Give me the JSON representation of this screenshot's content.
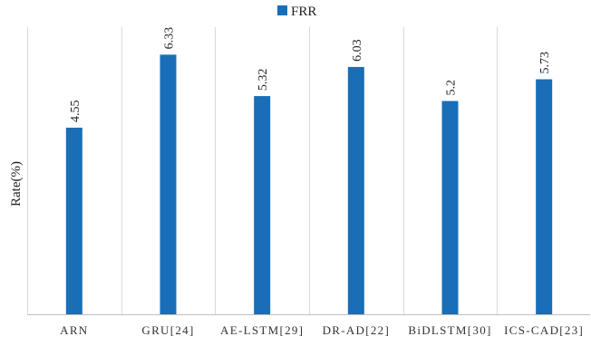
{
  "chart_data": {
    "type": "bar",
    "categories": [
      "ARN",
      "GRU[24]",
      "AE-LSTM[29]",
      "DR-AD[22]",
      "BiDLSTM[30]",
      "ICS-CAD[23]"
    ],
    "series": [
      {
        "name": "FRR",
        "values": [
          4.55,
          6.33,
          5.32,
          6.03,
          5.2,
          5.73
        ],
        "labels": [
          "4.55",
          "6.33",
          "5.32",
          "6.03",
          "5.2",
          "5.73"
        ],
        "color": "#1a6eb8"
      }
    ],
    "xlabel": "",
    "ylabel": "Rate(%)",
    "ylim": [
      0,
      7
    ],
    "legend_position": "top-center",
    "grid": "vertical category separators",
    "y_ticks_shown": false
  }
}
